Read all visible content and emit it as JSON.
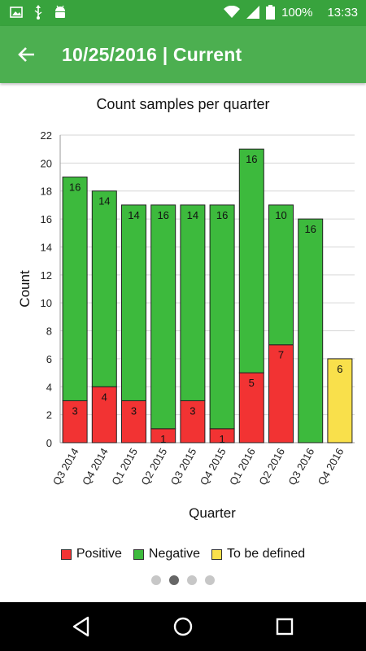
{
  "status": {
    "battery": "100%",
    "time": "13:33"
  },
  "header": {
    "title": "10/25/2016 | Current"
  },
  "chart_data": {
    "type": "bar",
    "stacked": true,
    "title": "Count samples per quarter",
    "xlabel": "Quarter",
    "ylabel": "Count",
    "ylim": [
      0,
      22
    ],
    "yticks": [
      0,
      2,
      4,
      6,
      8,
      10,
      12,
      14,
      16,
      18,
      20,
      22
    ],
    "grid": true,
    "legend_position": "bottom",
    "categories": [
      "Q3 2014",
      "Q4 2014",
      "Q1 2015",
      "Q2 2015",
      "Q3 2015",
      "Q4 2015",
      "Q1 2016",
      "Q2 2016",
      "Q3 2016",
      "Q4 2016"
    ],
    "series": [
      {
        "name": "Positive",
        "color": "#f23333",
        "values": [
          3,
          4,
          3,
          1,
          3,
          1,
          5,
          7,
          0,
          0
        ]
      },
      {
        "name": "Negative",
        "color": "#3dba3d",
        "values": [
          16,
          14,
          14,
          16,
          14,
          16,
          16,
          10,
          16,
          0
        ]
      },
      {
        "name": "To be defined",
        "color": "#f9e04b",
        "values": [
          0,
          0,
          0,
          0,
          0,
          0,
          0,
          0,
          0,
          6
        ]
      }
    ]
  },
  "pager": {
    "pages": 4,
    "active": 1
  }
}
